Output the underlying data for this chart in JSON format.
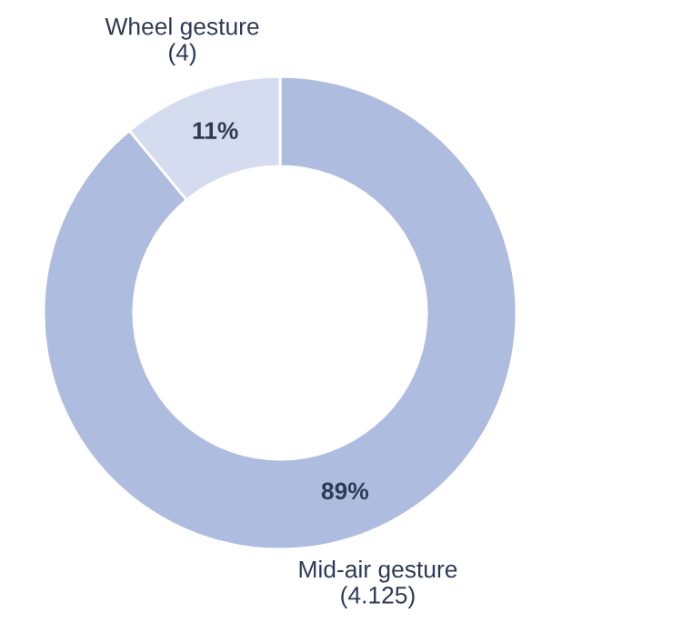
{
  "chart_data": {
    "type": "donut",
    "categories": [
      "Mid-air gesture\n(4.125)",
      "Wheel gesture\n(4)"
    ],
    "values": [
      89,
      11
    ],
    "colors": [
      "#aebcdf",
      "#d6dcef"
    ],
    "value_labels": [
      "89%",
      "11%"
    ]
  }
}
